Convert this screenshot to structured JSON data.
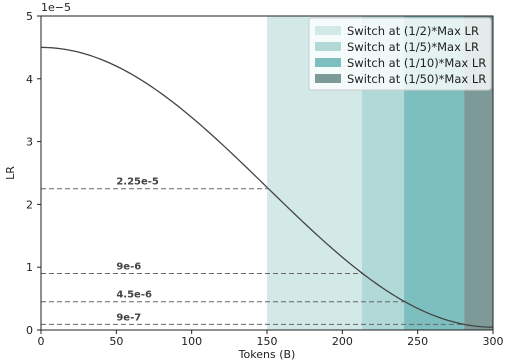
{
  "chart_data": {
    "type": "line",
    "xlabel": "Tokens (B)",
    "ylabel": "LR",
    "y_offset_label": "1e−5",
    "xlim": [
      0,
      300
    ],
    "ylim": [
      0,
      5
    ],
    "y_scale_factor": 1e-05,
    "xticks": [
      0,
      50,
      100,
      150,
      200,
      250,
      300
    ],
    "yticks": [
      0,
      1,
      2,
      3,
      4,
      5
    ],
    "grid": false,
    "legend_position": "top-right",
    "curve": {
      "shape": "cosine decay",
      "max": 4.5,
      "min": 0.045,
      "x_start": 0,
      "x_end": 300,
      "color": "#444444"
    },
    "shaded_regions": [
      {
        "label": "Switch at (1/2)*Max LR",
        "x_start": 150,
        "x_end": 300,
        "color": "#d3e9e8"
      },
      {
        "label": "Switch at (1/5)*Max LR",
        "x_start": 213,
        "x_end": 300,
        "color": "#b0d9d7"
      },
      {
        "label": "Switch at (1/10)*Max LR",
        "x_start": 241,
        "x_end": 300,
        "color": "#7dbfbf"
      },
      {
        "label": "Switch at (1/50)*Max LR",
        "x_start": 281,
        "x_end": 300,
        "color": "#7e9a98"
      }
    ],
    "reference_lines": [
      {
        "value": 2.25,
        "label": "2.25e-5",
        "x_end": 150
      },
      {
        "value": 0.9,
        "label": "9e-6",
        "x_end": 213
      },
      {
        "value": 0.45,
        "label": "4.5e-6",
        "x_end": 241
      },
      {
        "value": 0.09,
        "label": "9e-7",
        "x_end": 281
      }
    ]
  }
}
